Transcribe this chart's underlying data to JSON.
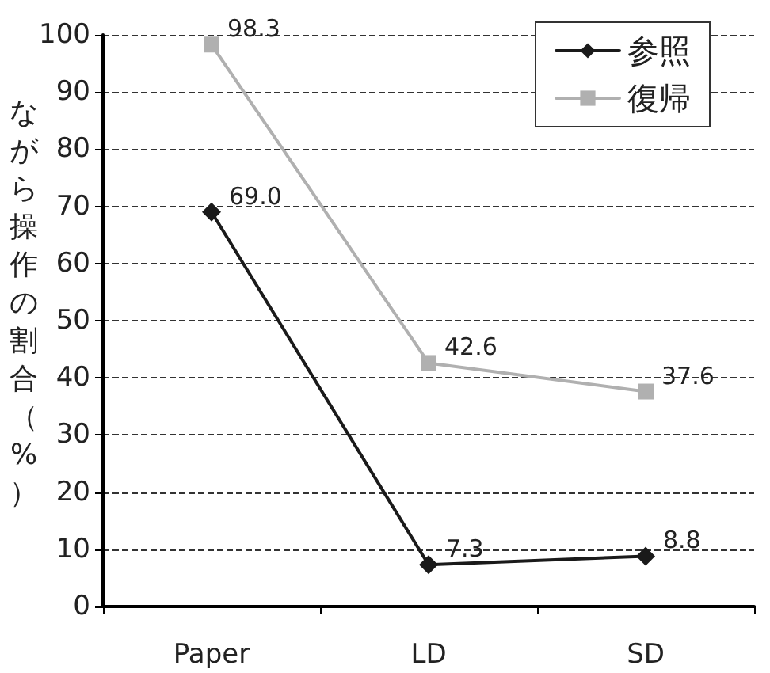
{
  "chart_data": {
    "type": "line",
    "ylabel": "ながら操作の割合（%）",
    "categories": [
      "Paper",
      "LD",
      "SD"
    ],
    "series": [
      {
        "name": "参照",
        "color": "#1a1a1a",
        "marker": "diamond",
        "values": [
          69.0,
          7.3,
          8.8
        ],
        "value_labels": [
          "69.0",
          "7.3",
          "8.8"
        ]
      },
      {
        "name": "復帰",
        "color": "#b0b0b0",
        "marker": "square",
        "values": [
          98.3,
          42.6,
          37.6
        ],
        "value_labels": [
          "98.3",
          "42.6",
          "37.6"
        ]
      }
    ],
    "ylim": [
      0,
      100
    ],
    "yticks": [
      0,
      10,
      20,
      30,
      40,
      50,
      60,
      70,
      80,
      90,
      100
    ],
    "grid": "y",
    "legend": "top right",
    "line_style": "solid"
  }
}
